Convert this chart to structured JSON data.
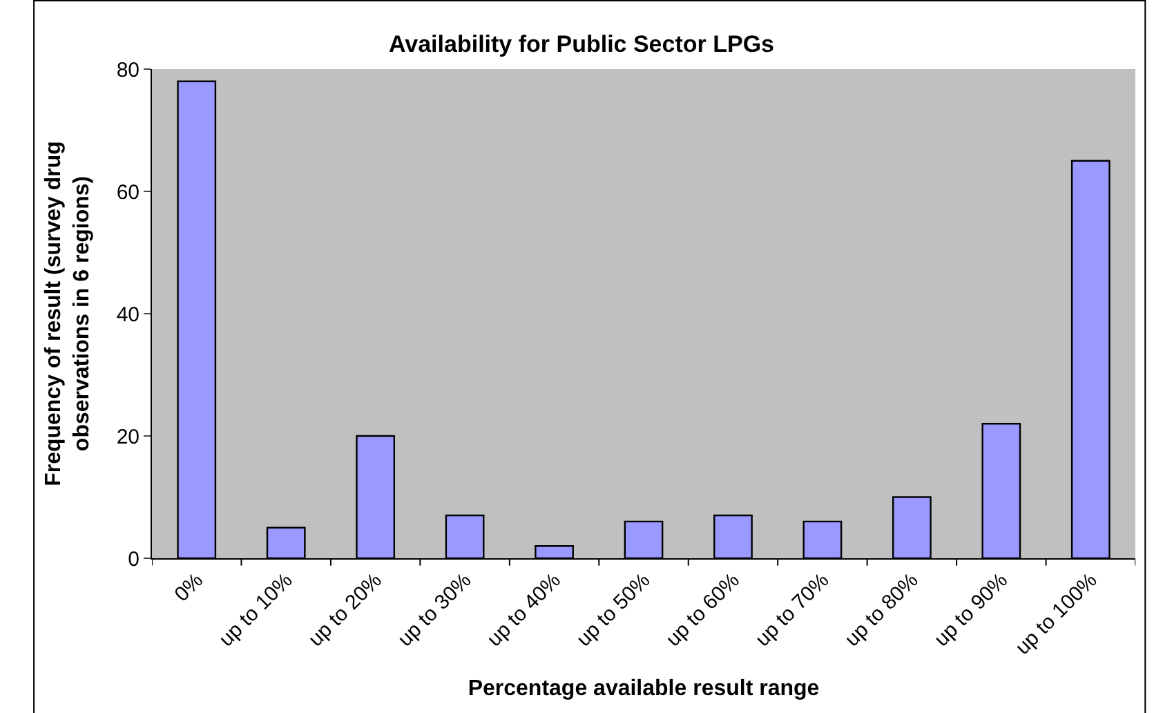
{
  "chart_data": {
    "type": "bar",
    "title": "Availability for Public Sector LPGs",
    "xlabel": "Percentage available result range",
    "ylabel": "Frequency of result (survey drug observations in 6 regions)",
    "categories": [
      "0%",
      "up to 10%",
      "up to 20%",
      "up to 30%",
      "up to 40%",
      "up to 50%",
      "up to 60%",
      "up to 70%",
      "up to 80%",
      "up to 90%",
      "up to 100%"
    ],
    "values": [
      78,
      5,
      20,
      7,
      2,
      6,
      7,
      6,
      10,
      22,
      65
    ],
    "color": "#9999ff",
    "ylim": [
      0,
      80
    ],
    "yticks": [
      0,
      20,
      40,
      60,
      80
    ],
    "grid": false,
    "legend": false
  }
}
